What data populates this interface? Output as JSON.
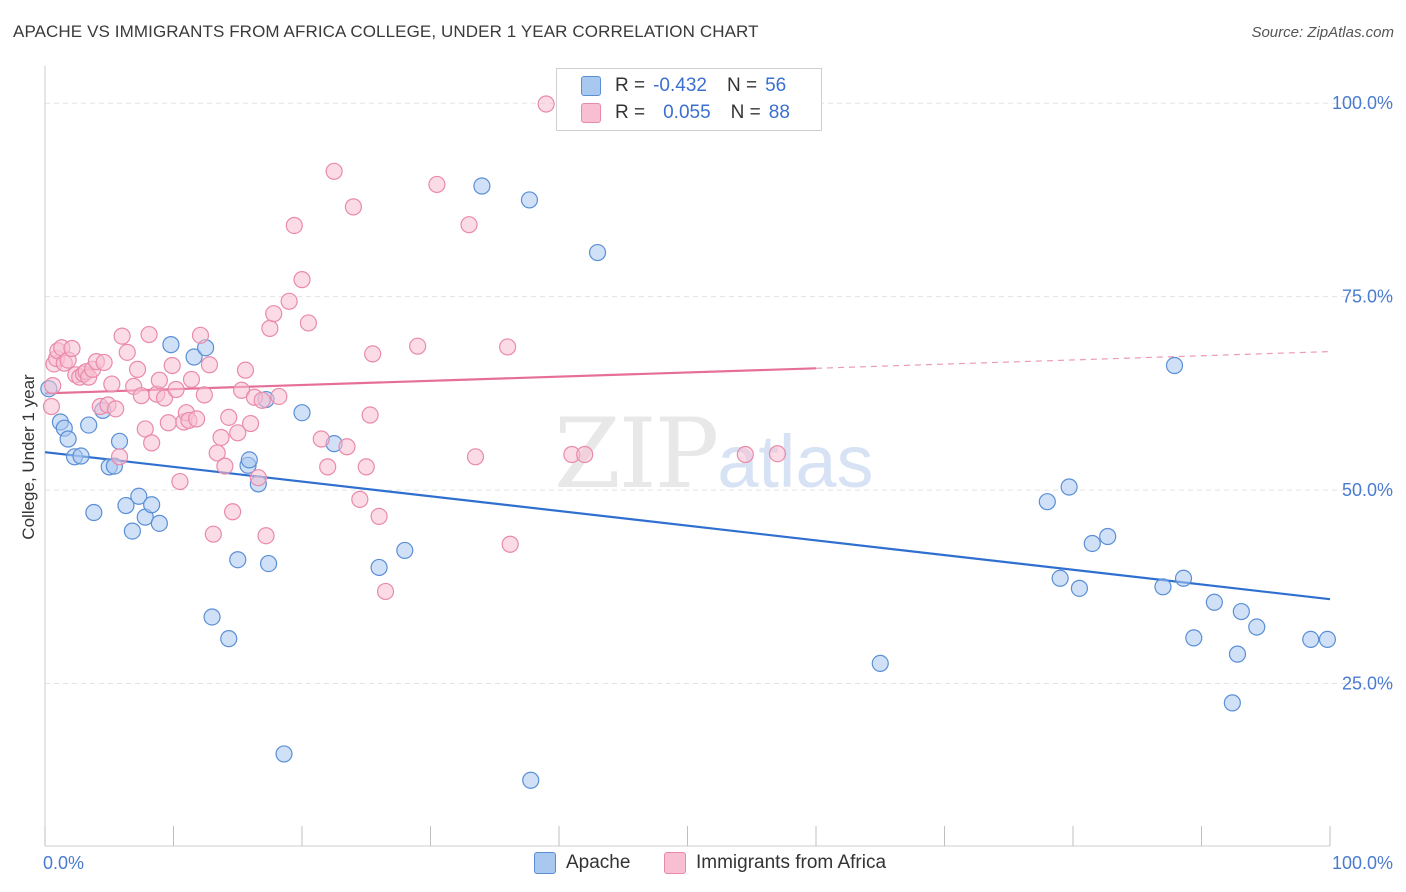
{
  "title": "APACHE VS IMMIGRANTS FROM AFRICA COLLEGE, UNDER 1 YEAR CORRELATION CHART",
  "source": "Source: ZipAtlas.com",
  "watermark": {
    "zip": "ZIP",
    "atlas": "atlas"
  },
  "legend_top": {
    "rows": [
      {
        "r_label": "R =",
        "r_value": "-0.432",
        "n_label": "N =",
        "n_value": "56"
      },
      {
        "r_label": "R =",
        "r_value": "0.055",
        "n_label": "N =",
        "n_value": "88"
      }
    ]
  },
  "legend_bottom": [
    "Apache",
    "Immigrants from Africa"
  ],
  "colors": {
    "apache_fill": "#a9c8f0",
    "apache_stroke": "#5a8fd6",
    "apache_line": "#2f6fd0",
    "africa_fill": "#f7bfd1",
    "africa_stroke": "#e98aa9",
    "africa_line": "#e66f98",
    "grid": "#e3e3e3",
    "tick_text": "#4a7bd0"
  },
  "chart_data": {
    "type": "scatter",
    "ylabel": "College, Under 1 year",
    "xlim": [
      0,
      100
    ],
    "ylim": [
      4,
      103
    ],
    "y_ticks": [
      25,
      50,
      75,
      100
    ],
    "y_tick_labels": [
      "25.0%",
      "50.0%",
      "75.0%",
      "100.0%"
    ],
    "x_tick_labels": [
      "0.0%",
      "100.0%"
    ],
    "grid": true,
    "series": [
      {
        "name": "Apache",
        "trend": {
          "x0": 0,
          "y0": 54.9,
          "x1": 100,
          "y1": 35.9,
          "dashed_from": null
        },
        "points": [
          [
            0.3,
            63.1
          ],
          [
            1.2,
            58.8
          ],
          [
            1.5,
            58.0
          ],
          [
            1.8,
            56.6
          ],
          [
            2.3,
            54.3
          ],
          [
            2.8,
            54.4
          ],
          [
            3.4,
            58.4
          ],
          [
            3.8,
            47.1
          ],
          [
            4.5,
            60.3
          ],
          [
            5.0,
            53.0
          ],
          [
            5.4,
            53.1
          ],
          [
            5.8,
            56.3
          ],
          [
            6.3,
            48.0
          ],
          [
            6.8,
            44.7
          ],
          [
            7.3,
            49.2
          ],
          [
            7.8,
            46.5
          ],
          [
            8.3,
            48.1
          ],
          [
            8.9,
            45.7
          ],
          [
            9.8,
            68.8
          ],
          [
            11.6,
            67.2
          ],
          [
            12.5,
            68.4
          ],
          [
            13.0,
            33.6
          ],
          [
            14.3,
            30.8
          ],
          [
            15.0,
            41.0
          ],
          [
            15.8,
            53.2
          ],
          [
            15.9,
            53.9
          ],
          [
            16.6,
            50.8
          ],
          [
            17.2,
            61.7
          ],
          [
            17.4,
            40.5
          ],
          [
            18.6,
            15.9
          ],
          [
            20.0,
            60.0
          ],
          [
            22.5,
            56.0
          ],
          [
            26.0,
            40.0
          ],
          [
            28.0,
            42.2
          ],
          [
            34.0,
            89.3
          ],
          [
            37.8,
            12.5
          ],
          [
            37.7,
            87.5
          ],
          [
            43.0,
            80.7
          ],
          [
            65.0,
            27.6
          ],
          [
            78.0,
            48.5
          ],
          [
            79.0,
            38.6
          ],
          [
            79.7,
            50.4
          ],
          [
            80.5,
            37.3
          ],
          [
            81.5,
            43.1
          ],
          [
            82.7,
            44.0
          ],
          [
            87.0,
            37.5
          ],
          [
            87.9,
            66.1
          ],
          [
            88.6,
            38.6
          ],
          [
            89.4,
            30.9
          ],
          [
            91.0,
            35.5
          ],
          [
            92.4,
            22.5
          ],
          [
            92.8,
            28.8
          ],
          [
            93.1,
            34.3
          ],
          [
            94.3,
            32.3
          ],
          [
            98.5,
            30.7
          ],
          [
            99.8,
            30.7
          ]
        ]
      },
      {
        "name": "Immigrants from Africa",
        "trend": {
          "x0": 0,
          "y0": 62.5,
          "x1": 100,
          "y1": 67.9,
          "dashed_from": 60
        },
        "points": [
          [
            0.5,
            60.8
          ],
          [
            0.6,
            63.5
          ],
          [
            0.7,
            66.3
          ],
          [
            0.9,
            67.0
          ],
          [
            1.0,
            68.0
          ],
          [
            1.3,
            68.4
          ],
          [
            1.5,
            66.4
          ],
          [
            1.8,
            66.8
          ],
          [
            2.1,
            68.3
          ],
          [
            2.4,
            64.9
          ],
          [
            2.7,
            64.6
          ],
          [
            3.0,
            65.0
          ],
          [
            3.2,
            65.3
          ],
          [
            3.4,
            64.6
          ],
          [
            3.7,
            65.6
          ],
          [
            4.0,
            66.6
          ],
          [
            4.3,
            60.8
          ],
          [
            4.6,
            66.5
          ],
          [
            4.9,
            61.0
          ],
          [
            5.2,
            63.7
          ],
          [
            5.5,
            60.5
          ],
          [
            5.8,
            54.3
          ],
          [
            6.0,
            69.9
          ],
          [
            6.4,
            67.8
          ],
          [
            6.9,
            63.4
          ],
          [
            7.2,
            65.6
          ],
          [
            7.5,
            62.2
          ],
          [
            7.8,
            57.9
          ],
          [
            8.1,
            70.1
          ],
          [
            8.3,
            56.1
          ],
          [
            8.7,
            62.4
          ],
          [
            8.9,
            64.2
          ],
          [
            9.3,
            61.9
          ],
          [
            9.6,
            58.7
          ],
          [
            9.9,
            66.1
          ],
          [
            10.2,
            63.0
          ],
          [
            10.5,
            51.1
          ],
          [
            10.8,
            58.8
          ],
          [
            11.0,
            60.0
          ],
          [
            11.2,
            59.0
          ],
          [
            11.4,
            64.3
          ],
          [
            11.8,
            59.2
          ],
          [
            12.1,
            70.0
          ],
          [
            12.4,
            62.3
          ],
          [
            12.8,
            66.2
          ],
          [
            13.1,
            44.3
          ],
          [
            13.4,
            54.8
          ],
          [
            13.7,
            56.8
          ],
          [
            14.0,
            53.1
          ],
          [
            14.3,
            59.4
          ],
          [
            14.6,
            47.2
          ],
          [
            15.0,
            57.4
          ],
          [
            15.3,
            62.9
          ],
          [
            15.6,
            65.5
          ],
          [
            16.0,
            58.6
          ],
          [
            16.3,
            62.0
          ],
          [
            16.6,
            51.6
          ],
          [
            16.9,
            61.6
          ],
          [
            17.2,
            44.1
          ],
          [
            17.5,
            70.9
          ],
          [
            17.8,
            72.8
          ],
          [
            18.2,
            62.1
          ],
          [
            19.0,
            74.4
          ],
          [
            19.4,
            84.2
          ],
          [
            20.0,
            77.2
          ],
          [
            20.5,
            71.6
          ],
          [
            21.5,
            56.6
          ],
          [
            22.0,
            53.0
          ],
          [
            22.5,
            91.2
          ],
          [
            23.5,
            55.6
          ],
          [
            24.0,
            86.6
          ],
          [
            24.5,
            48.8
          ],
          [
            25.0,
            53.0
          ],
          [
            25.3,
            59.7
          ],
          [
            25.5,
            67.6
          ],
          [
            26.0,
            46.6
          ],
          [
            26.5,
            36.9
          ],
          [
            29.0,
            68.6
          ],
          [
            30.5,
            89.5
          ],
          [
            33.0,
            84.3
          ],
          [
            33.5,
            54.3
          ],
          [
            36.0,
            68.5
          ],
          [
            36.2,
            43.0
          ],
          [
            39.0,
            99.9
          ],
          [
            41.0,
            54.6
          ],
          [
            42.0,
            54.6
          ],
          [
            54.5,
            54.6
          ],
          [
            57.0,
            54.7
          ]
        ]
      }
    ]
  }
}
